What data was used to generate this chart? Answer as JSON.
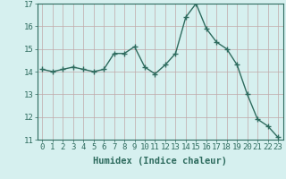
{
  "x": [
    0,
    1,
    2,
    3,
    4,
    5,
    6,
    7,
    8,
    9,
    10,
    11,
    12,
    13,
    14,
    15,
    16,
    17,
    18,
    19,
    20,
    21,
    22,
    23
  ],
  "y": [
    14.1,
    14.0,
    14.1,
    14.2,
    14.1,
    14.0,
    14.1,
    14.8,
    14.8,
    15.1,
    14.2,
    13.9,
    14.3,
    14.8,
    16.4,
    17.0,
    15.9,
    15.3,
    15.0,
    14.3,
    13.0,
    11.9,
    11.6,
    11.1
  ],
  "xlabel": "Humidex (Indice chaleur)",
  "ylim": [
    11,
    17
  ],
  "xlim": [
    -0.5,
    23.5
  ],
  "yticks": [
    11,
    12,
    13,
    14,
    15,
    16,
    17
  ],
  "xticks": [
    0,
    1,
    2,
    3,
    4,
    5,
    6,
    7,
    8,
    9,
    10,
    11,
    12,
    13,
    14,
    15,
    16,
    17,
    18,
    19,
    20,
    21,
    22,
    23
  ],
  "line_color": "#2e6b5e",
  "marker": "+",
  "marker_size": 4,
  "marker_linewidth": 1.0,
  "bg_color": "#d6f0ef",
  "grid_color": "#c0a8a8",
  "axis_color": "#2e6b5e",
  "xlabel_fontsize": 7.5,
  "tick_fontsize": 6.5,
  "line_width": 1.0
}
